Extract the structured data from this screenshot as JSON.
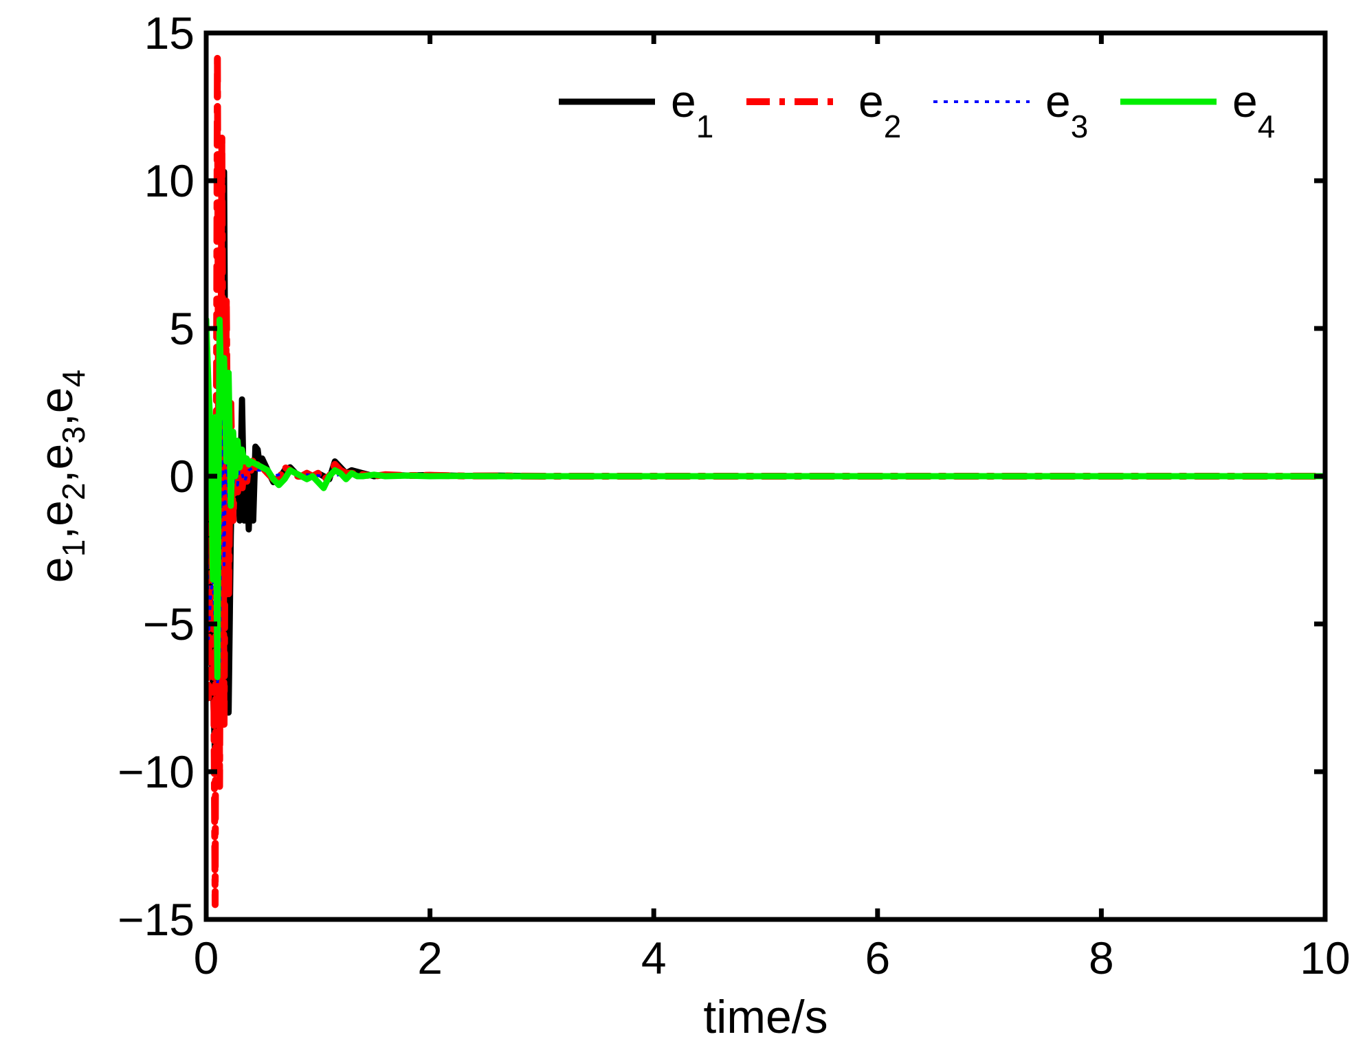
{
  "chart_data": {
    "type": "line",
    "title": "",
    "xlabel": "time/s",
    "ylabel": {
      "base": "e",
      "parts": [
        {
          "sub": "1",
          "sep": ","
        },
        {
          "sub": "2",
          "sep": ","
        },
        {
          "sub": "3",
          "sep": ","
        },
        {
          "sub": "4",
          "sep": ""
        }
      ]
    },
    "xlim": [
      0,
      10
    ],
    "ylim": [
      -15,
      15
    ],
    "xticks": [
      0,
      2,
      4,
      6,
      8,
      10
    ],
    "yticks": [
      -15,
      -10,
      -5,
      0,
      5,
      10,
      15
    ],
    "xtick_labels": [
      "0",
      "2",
      "4",
      "6",
      "8",
      "10"
    ],
    "ytick_labels": [
      "−15",
      "−10",
      "−5",
      "0",
      "5",
      "10",
      "15"
    ],
    "grid": false,
    "legend_position": "top-right",
    "legend_orientation": "horizontal",
    "series": [
      {
        "name": "e",
        "sub": "1",
        "color": "#000000",
        "style": "solid",
        "x": [
          0.0,
          0.02,
          0.04,
          0.06,
          0.08,
          0.1,
          0.12,
          0.14,
          0.16,
          0.18,
          0.2,
          0.22,
          0.24,
          0.26,
          0.28,
          0.3,
          0.32,
          0.34,
          0.36,
          0.38,
          0.4,
          0.42,
          0.44,
          0.46,
          0.48,
          0.5,
          0.55,
          0.6,
          0.65,
          0.7,
          0.75,
          0.8,
          0.85,
          0.9,
          0.95,
          1.0,
          1.05,
          1.1,
          1.15,
          1.2,
          1.25,
          1.3,
          1.4,
          1.5,
          1.6,
          1.8,
          2.0,
          2.3,
          2.6,
          3.0,
          10.0
        ],
        "y": [
          1.5,
          -1.2,
          -5.2,
          -7.0,
          -9.6,
          -8.0,
          -4.0,
          5.0,
          10.3,
          -4.0,
          -8.0,
          -2.0,
          1.5,
          -0.8,
          0.5,
          -1.5,
          2.6,
          -1.5,
          0.6,
          -1.8,
          0.2,
          -1.5,
          1.0,
          0.9,
          0.3,
          0.6,
          0.2,
          -0.2,
          -0.1,
          0.2,
          0.3,
          0.1,
          0.0,
          0.1,
          0.0,
          0.1,
          0.0,
          -0.1,
          0.5,
          0.3,
          0.1,
          0.2,
          0.1,
          0.0,
          0.05,
          0.02,
          0.04,
          0.01,
          0.02,
          0.0,
          0.0
        ]
      },
      {
        "name": "e",
        "sub": "2",
        "color": "#ff0000",
        "style": "dashdot",
        "x": [
          0.0,
          0.02,
          0.04,
          0.06,
          0.08,
          0.1,
          0.12,
          0.14,
          0.16,
          0.18,
          0.2,
          0.22,
          0.24,
          0.26,
          0.28,
          0.3,
          0.32,
          0.34,
          0.36,
          0.38,
          0.4,
          0.42,
          0.44,
          0.46,
          0.48,
          0.5,
          0.55,
          0.6,
          0.65,
          0.7,
          0.75,
          0.8,
          0.85,
          0.9,
          0.95,
          1.0,
          1.05,
          1.1,
          1.15,
          1.2,
          1.25,
          1.3,
          1.4,
          1.5,
          1.6,
          1.8,
          2.0,
          2.3,
          2.6,
          3.0,
          10.0
        ],
        "y": [
          1.0,
          -7.5,
          1.2,
          -2.0,
          -14.5,
          14.3,
          -10.5,
          11.5,
          -8.5,
          6.0,
          -4.0,
          2.5,
          -1.5,
          1.0,
          -0.6,
          0.8,
          -0.5,
          0.4,
          -0.3,
          0.5,
          0.2,
          0.6,
          0.3,
          0.4,
          0.3,
          0.3,
          0.1,
          -0.1,
          -0.1,
          0.3,
          0.2,
          0.0,
          0.0,
          0.1,
          0.0,
          0.1,
          -0.1,
          0.0,
          0.4,
          0.2,
          0.1,
          0.1,
          0.05,
          0.0,
          0.05,
          0.02,
          0.03,
          0.01,
          0.01,
          0.0,
          0.0
        ]
      },
      {
        "name": "e",
        "sub": "3",
        "color": "#0000ff",
        "style": "dotted",
        "x": [
          0.0,
          0.02,
          0.04,
          0.06,
          0.08,
          0.1,
          0.12,
          0.14,
          0.16,
          0.18,
          0.2,
          0.22,
          0.24,
          0.26,
          0.28,
          0.3,
          0.34,
          0.38,
          0.42,
          0.46,
          0.5,
          0.6,
          0.7,
          0.8,
          0.9,
          1.0,
          1.1,
          1.2,
          1.4,
          1.6,
          2.0,
          3.0,
          10.0
        ],
        "y": [
          0.5,
          -5.5,
          -4.0,
          -3.5,
          -5.0,
          -7.0,
          -6.5,
          2.0,
          -3.0,
          1.5,
          -1.0,
          1.0,
          -0.5,
          0.6,
          -0.3,
          0.4,
          -0.2,
          0.2,
          0.3,
          0.2,
          0.2,
          0.0,
          0.1,
          0.0,
          0.05,
          0.02,
          0.0,
          0.05,
          0.02,
          0.0,
          0.0,
          0.0,
          0.0
        ]
      },
      {
        "name": "e",
        "sub": "4",
        "color": "#00ee00",
        "style": "solid",
        "x": [
          0.0,
          0.02,
          0.04,
          0.06,
          0.08,
          0.1,
          0.12,
          0.14,
          0.16,
          0.18,
          0.2,
          0.22,
          0.24,
          0.26,
          0.28,
          0.3,
          0.32,
          0.34,
          0.36,
          0.38,
          0.4,
          0.45,
          0.5,
          0.55,
          0.6,
          0.65,
          0.7,
          0.75,
          0.8,
          0.85,
          0.9,
          0.95,
          1.0,
          1.05,
          1.1,
          1.15,
          1.2,
          1.25,
          1.3,
          1.35,
          1.4,
          1.5,
          1.6,
          1.8,
          2.0,
          2.3,
          2.6,
          3.0,
          10.0
        ],
        "y": [
          5.3,
          3.0,
          1.5,
          -3.5,
          2.0,
          -6.8,
          5.3,
          2.0,
          4.0,
          0.5,
          3.5,
          -1.0,
          1.5,
          0.0,
          1.2,
          0.3,
          0.9,
          0.5,
          0.6,
          0.4,
          0.5,
          0.4,
          0.3,
          0.2,
          -0.1,
          -0.3,
          -0.1,
          0.2,
          0.1,
          0.0,
          -0.1,
          0.0,
          -0.2,
          -0.4,
          0.0,
          0.2,
          0.1,
          -0.1,
          0.1,
          0.0,
          0.0,
          0.05,
          0.0,
          0.02,
          0.0,
          0.01,
          0.0,
          0.0,
          0.0
        ]
      }
    ]
  }
}
